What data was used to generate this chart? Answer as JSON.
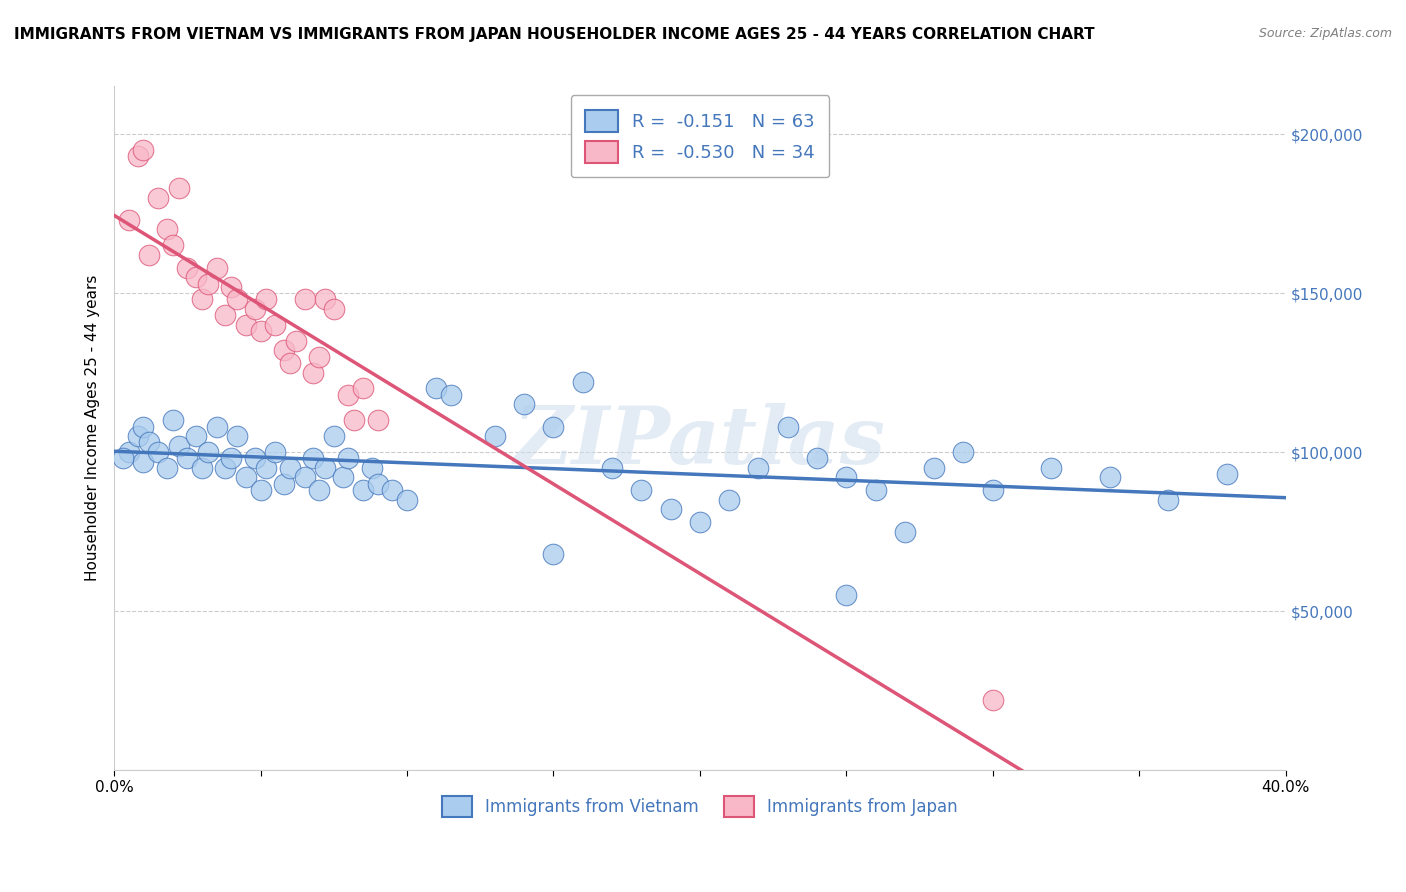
{
  "title": "IMMIGRANTS FROM VIETNAM VS IMMIGRANTS FROM JAPAN HOUSEHOLDER INCOME AGES 25 - 44 YEARS CORRELATION CHART",
  "source": "Source: ZipAtlas.com",
  "ylabel": "Householder Income Ages 25 - 44 years",
  "xlim": [
    0.0,
    0.4
  ],
  "ylim": [
    0,
    215000
  ],
  "vietnam_color": "#aaccee",
  "japan_color": "#f8b8c8",
  "vietnam_line_color": "#4477bb",
  "japan_line_color": "#dd5577",
  "R_vietnam": -0.151,
  "N_vietnam": 63,
  "R_japan": -0.53,
  "N_japan": 34,
  "vietnam_scatter": [
    [
      0.005,
      100000
    ],
    [
      0.008,
      105000
    ],
    [
      0.01,
      108000
    ],
    [
      0.01,
      97000
    ],
    [
      0.012,
      103000
    ],
    [
      0.015,
      100000
    ],
    [
      0.018,
      95000
    ],
    [
      0.02,
      110000
    ],
    [
      0.022,
      102000
    ],
    [
      0.025,
      98000
    ],
    [
      0.028,
      105000
    ],
    [
      0.03,
      95000
    ],
    [
      0.032,
      100000
    ],
    [
      0.035,
      108000
    ],
    [
      0.038,
      95000
    ],
    [
      0.04,
      98000
    ],
    [
      0.042,
      105000
    ],
    [
      0.045,
      92000
    ],
    [
      0.048,
      98000
    ],
    [
      0.05,
      88000
    ],
    [
      0.052,
      95000
    ],
    [
      0.055,
      100000
    ],
    [
      0.058,
      90000
    ],
    [
      0.06,
      95000
    ],
    [
      0.065,
      92000
    ],
    [
      0.068,
      98000
    ],
    [
      0.07,
      88000
    ],
    [
      0.072,
      95000
    ],
    [
      0.075,
      105000
    ],
    [
      0.078,
      92000
    ],
    [
      0.08,
      98000
    ],
    [
      0.085,
      88000
    ],
    [
      0.088,
      95000
    ],
    [
      0.09,
      90000
    ],
    [
      0.095,
      88000
    ],
    [
      0.1,
      85000
    ],
    [
      0.11,
      120000
    ],
    [
      0.115,
      118000
    ],
    [
      0.13,
      105000
    ],
    [
      0.14,
      115000
    ],
    [
      0.15,
      108000
    ],
    [
      0.16,
      122000
    ],
    [
      0.17,
      95000
    ],
    [
      0.18,
      88000
    ],
    [
      0.19,
      82000
    ],
    [
      0.2,
      78000
    ],
    [
      0.21,
      85000
    ],
    [
      0.22,
      95000
    ],
    [
      0.23,
      108000
    ],
    [
      0.24,
      98000
    ],
    [
      0.25,
      92000
    ],
    [
      0.26,
      88000
    ],
    [
      0.27,
      75000
    ],
    [
      0.28,
      95000
    ],
    [
      0.29,
      100000
    ],
    [
      0.3,
      88000
    ],
    [
      0.32,
      95000
    ],
    [
      0.34,
      92000
    ],
    [
      0.36,
      85000
    ],
    [
      0.38,
      93000
    ],
    [
      0.003,
      98000
    ],
    [
      0.15,
      68000
    ],
    [
      0.25,
      55000
    ]
  ],
  "japan_scatter": [
    [
      0.005,
      173000
    ],
    [
      0.008,
      193000
    ],
    [
      0.01,
      195000
    ],
    [
      0.012,
      162000
    ],
    [
      0.015,
      180000
    ],
    [
      0.018,
      170000
    ],
    [
      0.02,
      165000
    ],
    [
      0.022,
      183000
    ],
    [
      0.025,
      158000
    ],
    [
      0.028,
      155000
    ],
    [
      0.03,
      148000
    ],
    [
      0.032,
      153000
    ],
    [
      0.035,
      158000
    ],
    [
      0.038,
      143000
    ],
    [
      0.04,
      152000
    ],
    [
      0.042,
      148000
    ],
    [
      0.045,
      140000
    ],
    [
      0.048,
      145000
    ],
    [
      0.05,
      138000
    ],
    [
      0.052,
      148000
    ],
    [
      0.055,
      140000
    ],
    [
      0.058,
      132000
    ],
    [
      0.06,
      128000
    ],
    [
      0.062,
      135000
    ],
    [
      0.065,
      148000
    ],
    [
      0.068,
      125000
    ],
    [
      0.07,
      130000
    ],
    [
      0.072,
      148000
    ],
    [
      0.075,
      145000
    ],
    [
      0.08,
      118000
    ],
    [
      0.082,
      110000
    ],
    [
      0.085,
      120000
    ],
    [
      0.09,
      110000
    ],
    [
      0.3,
      22000
    ]
  ],
  "background_color": "#ffffff",
  "grid_color": "#cccccc",
  "watermark": "ZIPatlas",
  "title_fontsize": 11,
  "axis_label_fontsize": 11,
  "tick_fontsize": 11,
  "legend_fontsize": 13
}
